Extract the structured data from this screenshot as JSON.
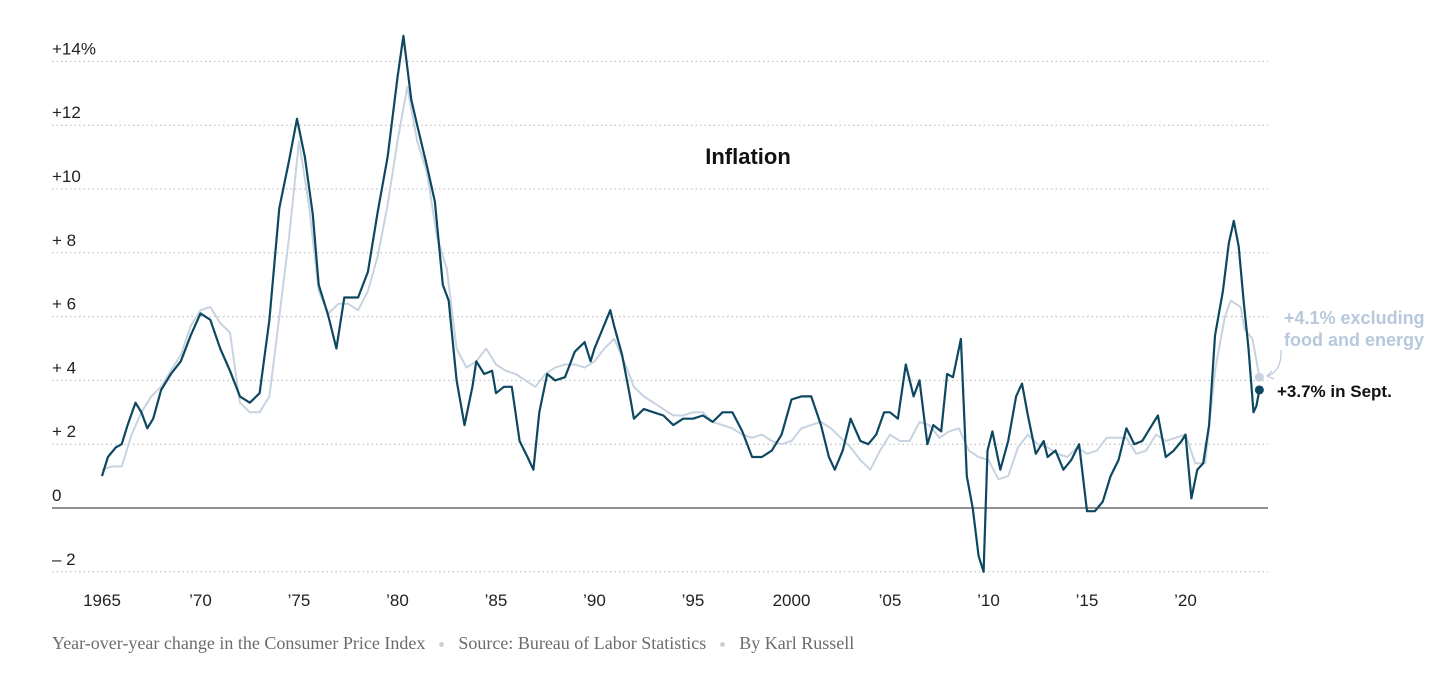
{
  "chart_data": {
    "type": "line",
    "title": "Inflation",
    "ylim": [
      -2,
      14
    ],
    "xlim": [
      1965,
      2023.8
    ],
    "y_ticks": [
      {
        "value": 14,
        "label": "+14%"
      },
      {
        "value": 12,
        "label": "+12"
      },
      {
        "value": 10,
        "label": "+10"
      },
      {
        "value": 8,
        "label": "+ 8"
      },
      {
        "value": 6,
        "label": "+ 6"
      },
      {
        "value": 4,
        "label": "+ 4"
      },
      {
        "value": 2,
        "label": "+ 2"
      },
      {
        "value": 0,
        "label": "0"
      },
      {
        "value": -2,
        "label": "– 2"
      }
    ],
    "x_ticks": [
      {
        "value": 1965,
        "label": "1965"
      },
      {
        "value": 1970,
        "label": "’70"
      },
      {
        "value": 1975,
        "label": "’75"
      },
      {
        "value": 1980,
        "label": "’80"
      },
      {
        "value": 1985,
        "label": "’85"
      },
      {
        "value": 1990,
        "label": "’90"
      },
      {
        "value": 1995,
        "label": "’95"
      },
      {
        "value": 2000,
        "label": "2000"
      },
      {
        "value": 2005,
        "label": "’05"
      },
      {
        "value": 2010,
        "label": "’10"
      },
      {
        "value": 2015,
        "label": "’15"
      },
      {
        "value": 2020,
        "label": "’20"
      }
    ],
    "grid": true,
    "series": [
      {
        "name": "",
        "color": "#c7d3e0",
        "points": [
          [
            1965.0,
            1.2
          ],
          [
            1965.5,
            1.3
          ],
          [
            1966.0,
            1.3
          ],
          [
            1966.5,
            2.3
          ],
          [
            1967.0,
            3.0
          ],
          [
            1967.5,
            3.5
          ],
          [
            1968.0,
            3.8
          ],
          [
            1968.5,
            4.3
          ],
          [
            1969.0,
            4.8
          ],
          [
            1969.5,
            5.7
          ],
          [
            1970.0,
            6.2
          ],
          [
            1970.5,
            6.3
          ],
          [
            1971.0,
            5.8
          ],
          [
            1971.5,
            5.5
          ],
          [
            1972.0,
            3.3
          ],
          [
            1972.5,
            3.0
          ],
          [
            1973.0,
            3.0
          ],
          [
            1973.5,
            3.5
          ],
          [
            1974.0,
            6.0
          ],
          [
            1974.5,
            8.5
          ],
          [
            1975.0,
            11.5
          ],
          [
            1975.5,
            9.5
          ],
          [
            1976.0,
            6.8
          ],
          [
            1976.5,
            6.1
          ],
          [
            1977.0,
            6.4
          ],
          [
            1977.5,
            6.4
          ],
          [
            1978.0,
            6.2
          ],
          [
            1978.5,
            6.8
          ],
          [
            1979.0,
            7.9
          ],
          [
            1979.5,
            9.5
          ],
          [
            1980.0,
            11.5
          ],
          [
            1980.5,
            13.2
          ],
          [
            1981.0,
            11.5
          ],
          [
            1981.5,
            10.5
          ],
          [
            1982.0,
            8.5
          ],
          [
            1982.5,
            7.5
          ],
          [
            1983.0,
            5.0
          ],
          [
            1983.5,
            4.4
          ],
          [
            1984.0,
            4.6
          ],
          [
            1984.5,
            5.0
          ],
          [
            1985.0,
            4.5
          ],
          [
            1985.5,
            4.3
          ],
          [
            1986.0,
            4.2
          ],
          [
            1986.5,
            4.0
          ],
          [
            1987.0,
            3.8
          ],
          [
            1987.5,
            4.2
          ],
          [
            1988.0,
            4.4
          ],
          [
            1988.5,
            4.5
          ],
          [
            1989.0,
            4.5
          ],
          [
            1989.5,
            4.4
          ],
          [
            1990.0,
            4.6
          ],
          [
            1990.5,
            5.0
          ],
          [
            1991.0,
            5.3
          ],
          [
            1991.5,
            4.6
          ],
          [
            1992.0,
            3.8
          ],
          [
            1992.5,
            3.5
          ],
          [
            1993.0,
            3.3
          ],
          [
            1993.5,
            3.1
          ],
          [
            1994.0,
            2.9
          ],
          [
            1994.5,
            2.9
          ],
          [
            1995.0,
            3.0
          ],
          [
            1995.5,
            3.0
          ],
          [
            1996.0,
            2.7
          ],
          [
            1996.5,
            2.6
          ],
          [
            1997.0,
            2.5
          ],
          [
            1997.5,
            2.3
          ],
          [
            1998.0,
            2.2
          ],
          [
            1998.5,
            2.3
          ],
          [
            1999.0,
            2.1
          ],
          [
            1999.5,
            2.0
          ],
          [
            2000.0,
            2.1
          ],
          [
            2000.5,
            2.5
          ],
          [
            2001.0,
            2.6
          ],
          [
            2001.5,
            2.7
          ],
          [
            2002.0,
            2.5
          ],
          [
            2002.5,
            2.2
          ],
          [
            2003.0,
            1.9
          ],
          [
            2003.5,
            1.5
          ],
          [
            2004.0,
            1.2
          ],
          [
            2004.5,
            1.8
          ],
          [
            2005.0,
            2.3
          ],
          [
            2005.5,
            2.1
          ],
          [
            2006.0,
            2.1
          ],
          [
            2006.5,
            2.7
          ],
          [
            2007.0,
            2.6
          ],
          [
            2007.5,
            2.2
          ],
          [
            2008.0,
            2.4
          ],
          [
            2008.5,
            2.5
          ],
          [
            2009.0,
            1.8
          ],
          [
            2009.5,
            1.6
          ],
          [
            2010.0,
            1.5
          ],
          [
            2010.5,
            0.9
          ],
          [
            2011.0,
            1.0
          ],
          [
            2011.5,
            1.9
          ],
          [
            2012.0,
            2.3
          ],
          [
            2012.5,
            2.0
          ],
          [
            2013.0,
            1.9
          ],
          [
            2013.5,
            1.7
          ],
          [
            2014.0,
            1.6
          ],
          [
            2014.5,
            1.9
          ],
          [
            2015.0,
            1.7
          ],
          [
            2015.5,
            1.8
          ],
          [
            2016.0,
            2.2
          ],
          [
            2016.5,
            2.2
          ],
          [
            2017.0,
            2.2
          ],
          [
            2017.5,
            1.7
          ],
          [
            2018.0,
            1.8
          ],
          [
            2018.5,
            2.3
          ],
          [
            2019.0,
            2.1
          ],
          [
            2019.5,
            2.2
          ],
          [
            2020.0,
            2.3
          ],
          [
            2020.5,
            1.4
          ],
          [
            2021.0,
            1.4
          ],
          [
            2021.5,
            4.3
          ],
          [
            2022.0,
            6.0
          ],
          [
            2022.3,
            6.5
          ],
          [
            2022.8,
            6.3
          ],
          [
            2023.0,
            5.6
          ],
          [
            2023.4,
            5.3
          ],
          [
            2023.75,
            4.1
          ]
        ]
      },
      {
        "name": "",
        "color": "#0d4761",
        "points": [
          [
            1965.0,
            1.0
          ],
          [
            1965.3,
            1.6
          ],
          [
            1965.7,
            1.9
          ],
          [
            1966.0,
            2.0
          ],
          [
            1966.3,
            2.6
          ],
          [
            1966.7,
            3.3
          ],
          [
            1967.0,
            3.0
          ],
          [
            1967.3,
            2.5
          ],
          [
            1967.6,
            2.8
          ],
          [
            1968.0,
            3.7
          ],
          [
            1968.5,
            4.2
          ],
          [
            1969.0,
            4.6
          ],
          [
            1969.5,
            5.4
          ],
          [
            1970.0,
            6.1
          ],
          [
            1970.5,
            5.9
          ],
          [
            1971.0,
            5.0
          ],
          [
            1971.5,
            4.3
          ],
          [
            1972.0,
            3.5
          ],
          [
            1972.5,
            3.3
          ],
          [
            1973.0,
            3.6
          ],
          [
            1973.5,
            5.9
          ],
          [
            1974.0,
            9.4
          ],
          [
            1974.5,
            10.9
          ],
          [
            1974.9,
            12.2
          ],
          [
            1975.3,
            11.0
          ],
          [
            1975.7,
            9.2
          ],
          [
            1976.0,
            7.0
          ],
          [
            1976.5,
            6.0
          ],
          [
            1976.9,
            5.0
          ],
          [
            1977.3,
            6.6
          ],
          [
            1977.7,
            6.6
          ],
          [
            1978.0,
            6.6
          ],
          [
            1978.5,
            7.4
          ],
          [
            1979.0,
            9.3
          ],
          [
            1979.5,
            11.0
          ],
          [
            1980.0,
            13.5
          ],
          [
            1980.3,
            14.8
          ],
          [
            1980.7,
            12.8
          ],
          [
            1981.0,
            12.0
          ],
          [
            1981.5,
            10.7
          ],
          [
            1981.9,
            9.6
          ],
          [
            1982.3,
            7.0
          ],
          [
            1982.6,
            6.5
          ],
          [
            1983.0,
            4.0
          ],
          [
            1983.4,
            2.6
          ],
          [
            1983.8,
            3.8
          ],
          [
            1984.0,
            4.6
          ],
          [
            1984.4,
            4.2
          ],
          [
            1984.8,
            4.3
          ],
          [
            1985.0,
            3.6
          ],
          [
            1985.4,
            3.8
          ],
          [
            1985.8,
            3.8
          ],
          [
            1986.2,
            2.1
          ],
          [
            1986.6,
            1.6
          ],
          [
            1986.9,
            1.2
          ],
          [
            1987.2,
            3.0
          ],
          [
            1987.6,
            4.2
          ],
          [
            1988.0,
            4.0
          ],
          [
            1988.5,
            4.1
          ],
          [
            1989.0,
            4.9
          ],
          [
            1989.5,
            5.2
          ],
          [
            1989.8,
            4.6
          ],
          [
            1990.0,
            5.0
          ],
          [
            1990.4,
            5.6
          ],
          [
            1990.8,
            6.2
          ],
          [
            1991.0,
            5.7
          ],
          [
            1991.4,
            4.8
          ],
          [
            1991.8,
            3.5
          ],
          [
            1992.0,
            2.8
          ],
          [
            1992.5,
            3.1
          ],
          [
            1993.0,
            3.0
          ],
          [
            1993.5,
            2.9
          ],
          [
            1994.0,
            2.6
          ],
          [
            1994.5,
            2.8
          ],
          [
            1995.0,
            2.8
          ],
          [
            1995.5,
            2.9
          ],
          [
            1996.0,
            2.7
          ],
          [
            1996.5,
            3.0
          ],
          [
            1997.0,
            3.0
          ],
          [
            1997.5,
            2.4
          ],
          [
            1998.0,
            1.6
          ],
          [
            1998.5,
            1.6
          ],
          [
            1999.0,
            1.8
          ],
          [
            1999.5,
            2.3
          ],
          [
            2000.0,
            3.4
          ],
          [
            2000.5,
            3.5
          ],
          [
            2001.0,
            3.5
          ],
          [
            2001.5,
            2.6
          ],
          [
            2001.9,
            1.6
          ],
          [
            2002.2,
            1.2
          ],
          [
            2002.6,
            1.8
          ],
          [
            2003.0,
            2.8
          ],
          [
            2003.5,
            2.1
          ],
          [
            2003.9,
            2.0
          ],
          [
            2004.3,
            2.3
          ],
          [
            2004.7,
            3.0
          ],
          [
            2005.0,
            3.0
          ],
          [
            2005.4,
            2.8
          ],
          [
            2005.8,
            4.5
          ],
          [
            2006.2,
            3.5
          ],
          [
            2006.5,
            4.0
          ],
          [
            2006.9,
            2.0
          ],
          [
            2007.2,
            2.6
          ],
          [
            2007.6,
            2.4
          ],
          [
            2007.9,
            4.2
          ],
          [
            2008.2,
            4.1
          ],
          [
            2008.6,
            5.3
          ],
          [
            2008.9,
            1.0
          ],
          [
            2009.2,
            0.0
          ],
          [
            2009.5,
            -1.5
          ],
          [
            2009.75,
            -2.0
          ],
          [
            2009.95,
            1.8
          ],
          [
            2010.2,
            2.4
          ],
          [
            2010.6,
            1.2
          ],
          [
            2011.0,
            2.1
          ],
          [
            2011.4,
            3.5
          ],
          [
            2011.7,
            3.9
          ],
          [
            2012.0,
            2.9
          ],
          [
            2012.4,
            1.7
          ],
          [
            2012.8,
            2.1
          ],
          [
            2013.0,
            1.6
          ],
          [
            2013.4,
            1.8
          ],
          [
            2013.8,
            1.2
          ],
          [
            2014.2,
            1.5
          ],
          [
            2014.6,
            2.0
          ],
          [
            2015.0,
            -0.1
          ],
          [
            2015.4,
            -0.1
          ],
          [
            2015.8,
            0.2
          ],
          [
            2016.2,
            1.0
          ],
          [
            2016.6,
            1.5
          ],
          [
            2017.0,
            2.5
          ],
          [
            2017.4,
            2.0
          ],
          [
            2017.8,
            2.1
          ],
          [
            2018.2,
            2.5
          ],
          [
            2018.6,
            2.9
          ],
          [
            2019.0,
            1.6
          ],
          [
            2019.4,
            1.8
          ],
          [
            2019.8,
            2.1
          ],
          [
            2020.0,
            2.3
          ],
          [
            2020.3,
            0.3
          ],
          [
            2020.6,
            1.2
          ],
          [
            2020.9,
            1.4
          ],
          [
            2021.2,
            2.6
          ],
          [
            2021.5,
            5.4
          ],
          [
            2021.9,
            6.8
          ],
          [
            2022.2,
            8.3
          ],
          [
            2022.45,
            9.0
          ],
          [
            2022.7,
            8.2
          ],
          [
            2022.95,
            6.5
          ],
          [
            2023.2,
            5.0
          ],
          [
            2023.45,
            3.0
          ],
          [
            2023.6,
            3.2
          ],
          [
            2023.75,
            3.7
          ]
        ]
      }
    ],
    "annotations": [
      {
        "line1": "+4.1% excluding",
        "line2": "food and energy"
      },
      {
        "text": "+3.7% in Sept."
      }
    ],
    "footer": [
      "Year-over-year change in the Consumer Price Index",
      "Source: Bureau of Labor Statistics",
      "By Karl Russell"
    ]
  }
}
